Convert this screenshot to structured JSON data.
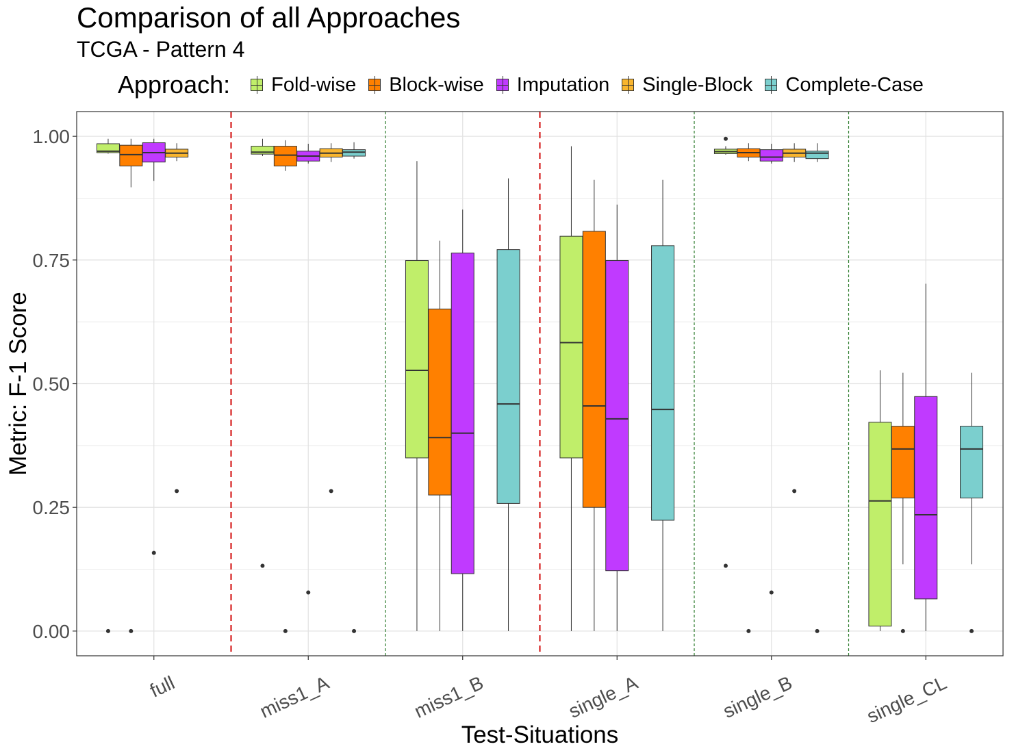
{
  "chart_data": {
    "type": "box",
    "title": "Comparison of all Approaches",
    "subtitle": "TCGA - Pattern 4",
    "xlabel": "Test-Situations",
    "ylabel": "Metric: F-1 Score",
    "ylim": [
      -0.05,
      1.05
    ],
    "yticks": [
      "0.00",
      "0.25",
      "0.50",
      "0.75",
      "1.00"
    ],
    "grid": true,
    "legend": {
      "title": "Approach:",
      "position": "top"
    },
    "categories": [
      "full",
      "miss1_A",
      "miss1_B",
      "single_A",
      "single_B",
      "single_CL"
    ],
    "series": [
      {
        "name": "Fold-wise",
        "color": "#C0EE6A"
      },
      {
        "name": "Block-wise",
        "color": "#FF8000"
      },
      {
        "name": "Imputation",
        "color": "#C03AFF"
      },
      {
        "name": "Single-Block",
        "color": "#F9B52F"
      },
      {
        "name": "Complete-Case",
        "color": "#7BCFCE"
      }
    ],
    "separators": [
      {
        "after": "full",
        "style": "red-dashed"
      },
      {
        "after": "miss1_A",
        "style": "green-dashed"
      },
      {
        "after": "miss1_B",
        "style": "red-dashed"
      },
      {
        "after": "single_A",
        "style": "green-dashed"
      },
      {
        "after": "single_B",
        "style": "green-dashed"
      }
    ],
    "boxes": [
      {
        "category": "full",
        "series": "Fold-wise",
        "min": 0.965,
        "q1": 0.967,
        "median": 0.97,
        "q3": 0.985,
        "max": 0.995,
        "outliers": [
          0.0
        ]
      },
      {
        "category": "full",
        "series": "Block-wise",
        "min": 0.897,
        "q1": 0.94,
        "median": 0.963,
        "q3": 0.982,
        "max": 0.995,
        "outliers": [
          0.0
        ]
      },
      {
        "category": "full",
        "series": "Imputation",
        "min": 0.91,
        "q1": 0.948,
        "median": 0.967,
        "q3": 0.987,
        "max": 0.995,
        "outliers": [
          0.158
        ]
      },
      {
        "category": "full",
        "series": "Single-Block",
        "min": 0.95,
        "q1": 0.958,
        "median": 0.966,
        "q3": 0.974,
        "max": 0.986,
        "outliers": [
          0.283
        ]
      },
      {
        "category": "miss1_A",
        "series": "Fold-wise",
        "min": 0.96,
        "q1": 0.964,
        "median": 0.968,
        "q3": 0.98,
        "max": 0.995,
        "outliers": [
          0.132
        ]
      },
      {
        "category": "miss1_A",
        "series": "Block-wise",
        "min": 0.93,
        "q1": 0.94,
        "median": 0.962,
        "q3": 0.98,
        "max": 0.992,
        "outliers": [
          0.0
        ]
      },
      {
        "category": "miss1_A",
        "series": "Imputation",
        "min": 0.945,
        "q1": 0.95,
        "median": 0.96,
        "q3": 0.97,
        "max": 0.985,
        "outliers": [
          0.078
        ]
      },
      {
        "category": "miss1_A",
        "series": "Single-Block",
        "min": 0.948,
        "q1": 0.958,
        "median": 0.966,
        "q3": 0.975,
        "max": 0.986,
        "outliers": [
          0.283
        ]
      },
      {
        "category": "miss1_A",
        "series": "Complete-Case",
        "min": 0.955,
        "q1": 0.96,
        "median": 0.968,
        "q3": 0.973,
        "max": 0.988,
        "outliers": [
          0.0
        ]
      },
      {
        "category": "miss1_B",
        "series": "Fold-wise",
        "min": 0.0,
        "q1": 0.35,
        "median": 0.527,
        "q3": 0.749,
        "max": 0.95,
        "outliers": []
      },
      {
        "category": "miss1_B",
        "series": "Block-wise",
        "min": 0.0,
        "q1": 0.275,
        "median": 0.391,
        "q3": 0.651,
        "max": 0.789,
        "outliers": []
      },
      {
        "category": "miss1_B",
        "series": "Imputation",
        "min": 0.0,
        "q1": 0.116,
        "median": 0.4,
        "q3": 0.764,
        "max": 0.852,
        "outliers": []
      },
      {
        "category": "miss1_B",
        "series": "Complete-Case",
        "min": 0.0,
        "q1": 0.258,
        "median": 0.459,
        "q3": 0.771,
        "max": 0.915,
        "outliers": []
      },
      {
        "category": "single_A",
        "series": "Fold-wise",
        "min": 0.0,
        "q1": 0.35,
        "median": 0.583,
        "q3": 0.798,
        "max": 0.98,
        "outliers": []
      },
      {
        "category": "single_A",
        "series": "Block-wise",
        "min": 0.0,
        "q1": 0.25,
        "median": 0.455,
        "q3": 0.808,
        "max": 0.912,
        "outliers": []
      },
      {
        "category": "single_A",
        "series": "Imputation",
        "min": 0.0,
        "q1": 0.122,
        "median": 0.429,
        "q3": 0.749,
        "max": 0.862,
        "outliers": []
      },
      {
        "category": "single_A",
        "series": "Complete-Case",
        "min": 0.0,
        "q1": 0.224,
        "median": 0.448,
        "q3": 0.779,
        "max": 0.912,
        "outliers": []
      },
      {
        "category": "single_B",
        "series": "Fold-wise",
        "min": 0.963,
        "q1": 0.965,
        "median": 0.969,
        "q3": 0.974,
        "max": 0.98,
        "outliers": [
          0.995,
          0.132
        ]
      },
      {
        "category": "single_B",
        "series": "Block-wise",
        "min": 0.95,
        "q1": 0.958,
        "median": 0.967,
        "q3": 0.975,
        "max": 0.986,
        "outliers": [
          0.0
        ]
      },
      {
        "category": "single_B",
        "series": "Imputation",
        "min": 0.945,
        "q1": 0.95,
        "median": 0.958,
        "q3": 0.973,
        "max": 0.985,
        "outliers": [
          0.078
        ]
      },
      {
        "category": "single_B",
        "series": "Single-Block",
        "min": 0.948,
        "q1": 0.958,
        "median": 0.966,
        "q3": 0.974,
        "max": 0.986,
        "outliers": [
          0.283
        ]
      },
      {
        "category": "single_B",
        "series": "Complete-Case",
        "min": 0.948,
        "q1": 0.955,
        "median": 0.966,
        "q3": 0.97,
        "max": 0.986,
        "outliers": [
          0.0
        ]
      },
      {
        "category": "single_CL",
        "series": "Fold-wise",
        "min": 0.0,
        "q1": 0.01,
        "median": 0.263,
        "q3": 0.422,
        "max": 0.527,
        "outliers": []
      },
      {
        "category": "single_CL",
        "series": "Block-wise",
        "min": 0.135,
        "q1": 0.269,
        "median": 0.368,
        "q3": 0.414,
        "max": 0.522,
        "outliers": [
          0.0
        ]
      },
      {
        "category": "single_CL",
        "series": "Imputation",
        "min": 0.0,
        "q1": 0.065,
        "median": 0.235,
        "q3": 0.474,
        "max": 0.702,
        "outliers": []
      },
      {
        "category": "single_CL",
        "series": "Complete-Case",
        "min": 0.135,
        "q1": 0.269,
        "median": 0.368,
        "q3": 0.414,
        "max": 0.522,
        "outliers": [
          0.0
        ]
      }
    ]
  }
}
